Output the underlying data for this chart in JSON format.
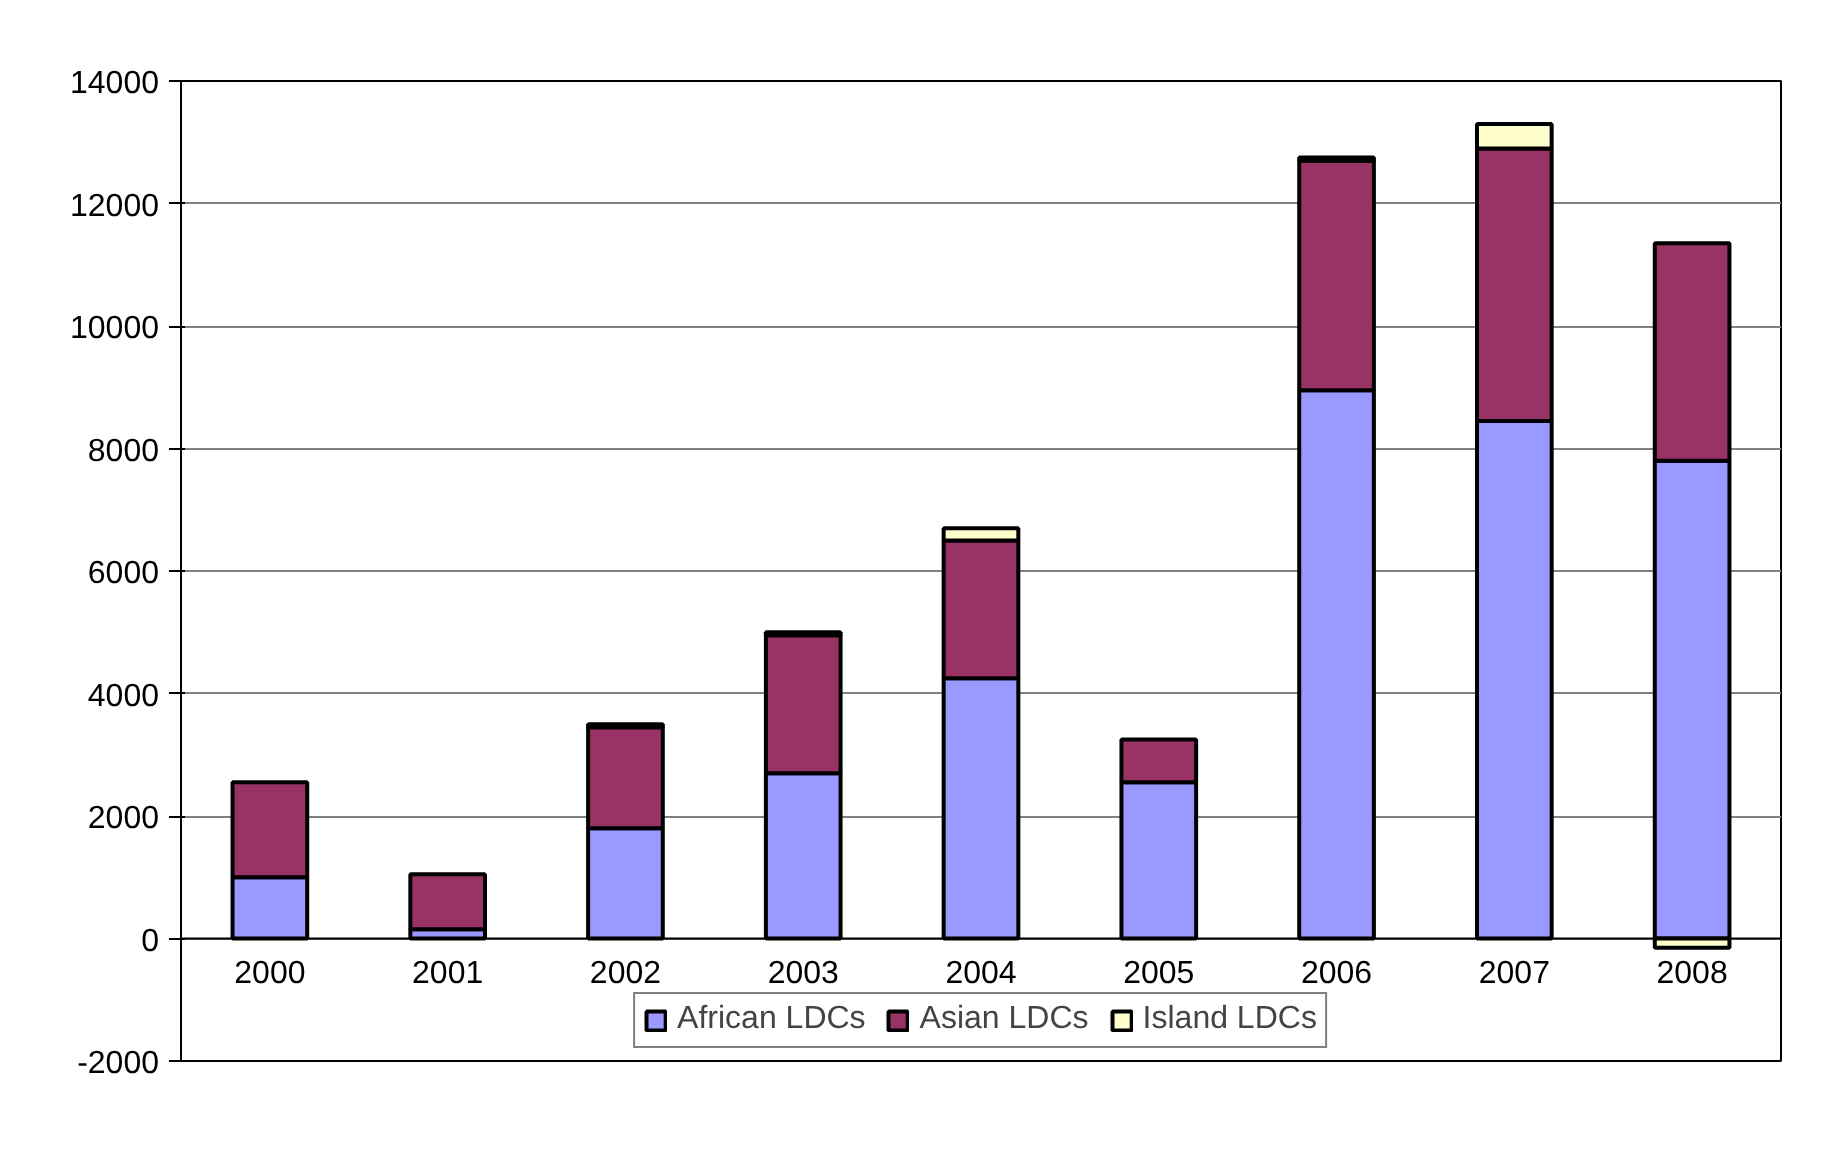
{
  "chart_data": {
    "type": "bar",
    "stacked": true,
    "categories": [
      "2000",
      "2001",
      "2002",
      "2003",
      "2004",
      "2005",
      "2006",
      "2007",
      "2008"
    ],
    "series": [
      {
        "name": "African LDCs",
        "color": "#9999ff",
        "values": [
          1000,
          150,
          1800,
          2700,
          4250,
          2550,
          8950,
          8450,
          7800
        ]
      },
      {
        "name": "Asian LDCs",
        "color": "#993366",
        "values": [
          1550,
          900,
          1650,
          2250,
          2250,
          700,
          3750,
          4450,
          3550
        ]
      },
      {
        "name": "Island LDCs",
        "color": "#ffffcc",
        "values": [
          null,
          null,
          50,
          50,
          200,
          null,
          50,
          400,
          -150
        ]
      }
    ],
    "ylim": [
      -2000,
      14000
    ],
    "yticks": [
      -2000,
      0,
      2000,
      4000,
      6000,
      8000,
      10000,
      12000,
      14000
    ],
    "grid": "y",
    "legend": "bottom"
  }
}
